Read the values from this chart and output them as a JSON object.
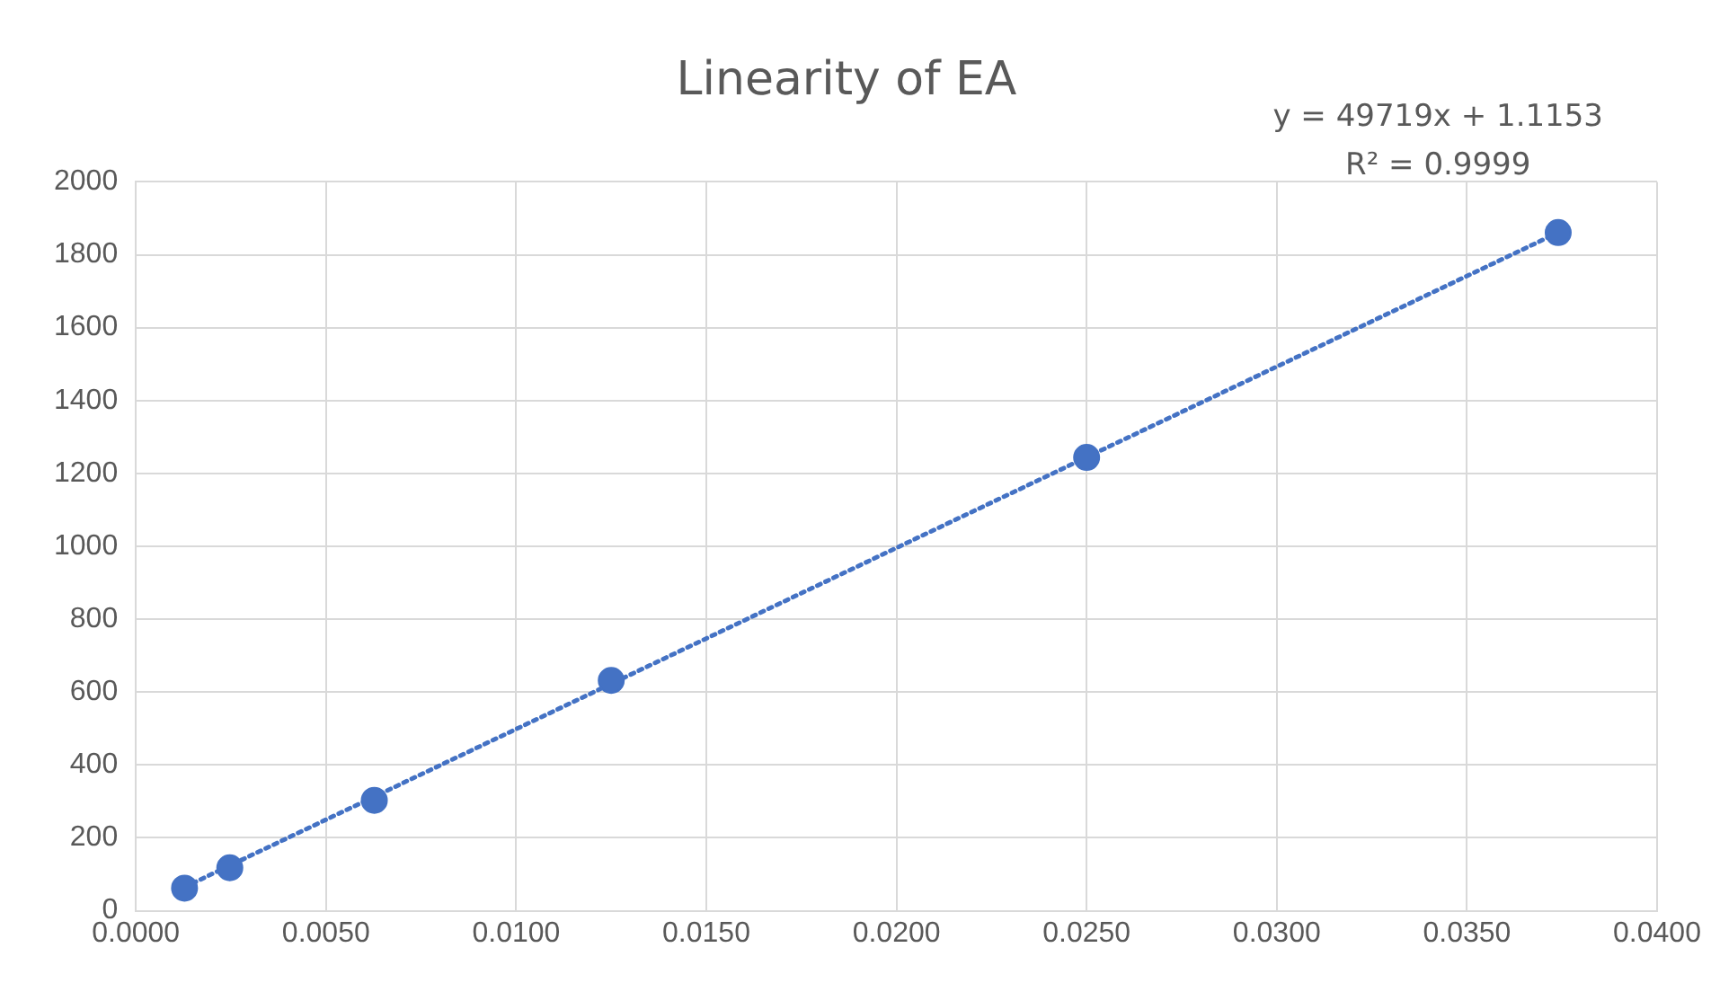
{
  "chart_data": {
    "type": "scatter",
    "title": "Linearity of EA",
    "annotations": [
      "y = 49719x + 1.1153",
      "R² = 0.9999"
    ],
    "series": [
      {
        "type": "scatter",
        "color": "#4472c4",
        "marker": "circle",
        "x": [
          0.00128,
          0.00247,
          0.00627,
          0.0125,
          0.025,
          0.0374
        ],
        "values": [
          62,
          118,
          303,
          632,
          1244,
          1861
        ]
      },
      {
        "type": "line",
        "color": "#4472c4",
        "marker": "none",
        "line_style": "dotted",
        "x": [
          0.00128,
          0.0374
        ],
        "values": [
          65,
          1861
        ]
      }
    ],
    "xlim": [
      0,
      0.04
    ],
    "xticks": [
      {
        "value": 0,
        "label": "0.0000"
      },
      {
        "value": 0.005,
        "label": "0.0050"
      },
      {
        "value": 0.01,
        "label": "0.0100"
      },
      {
        "value": 0.015,
        "label": "0.0150"
      },
      {
        "value": 0.02,
        "label": "0.0200"
      },
      {
        "value": 0.025,
        "label": "0.0250"
      },
      {
        "value": 0.03,
        "label": "0.0300"
      },
      {
        "value": 0.035,
        "label": "0.0350"
      },
      {
        "value": 0.04,
        "label": "0.0400"
      }
    ],
    "ylim": [
      0,
      2000
    ],
    "yticks": [
      0,
      200,
      400,
      600,
      800,
      1000,
      1200,
      1400,
      1600,
      1800,
      2000
    ],
    "grid": true,
    "legend": false
  }
}
